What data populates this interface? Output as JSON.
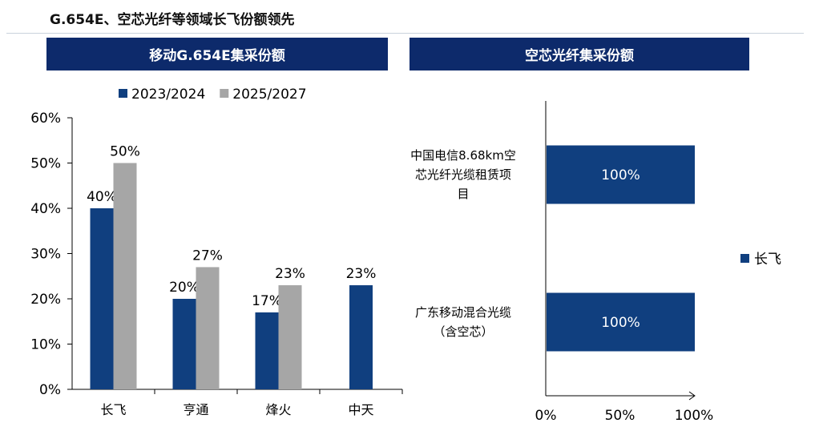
{
  "page": {
    "title": "G.654E、空芯光纤等领域长飞份额领先"
  },
  "colors": {
    "header_bg": "#0d2a6b",
    "series_dark": "#103f7f",
    "series_gray": "#a6a6a6"
  },
  "chart_data": [
    {
      "type": "bar",
      "title": "移动G.654E集采份额",
      "categories": [
        "长飞",
        "亨通",
        "烽火",
        "中天"
      ],
      "series": [
        {
          "name": "2023/2024",
          "values": [
            0.4,
            0.2,
            0.17,
            0.23
          ],
          "labels": [
            "40%",
            "20%",
            "17%",
            "23%"
          ]
        },
        {
          "name": "2025/2027",
          "values": [
            0.5,
            0.27,
            0.23,
            null
          ],
          "labels": [
            "50%",
            "27%",
            "23%",
            ""
          ]
        }
      ],
      "ylim": [
        0,
        0.6
      ],
      "yticks": [
        "0%",
        "10%",
        "20%",
        "30%",
        "40%",
        "50%",
        "60%"
      ],
      "legend_position": "top",
      "grid": false
    },
    {
      "type": "bar",
      "orientation": "horizontal",
      "title": "空芯光纤集采份额",
      "categories": [
        [
          "中国电信8.68km空",
          "芯光纤光缆租赁项",
          "目"
        ],
        [
          "广东移动混合光缆",
          "（含空芯）"
        ]
      ],
      "series": [
        {
          "name": "长飞",
          "values": [
            1.0,
            1.0
          ],
          "labels": [
            "100%",
            "100%"
          ]
        }
      ],
      "xlim": [
        0,
        1
      ],
      "xticks": [
        "0%",
        "50%",
        "100%"
      ],
      "legend_position": "right",
      "grid": false
    }
  ]
}
